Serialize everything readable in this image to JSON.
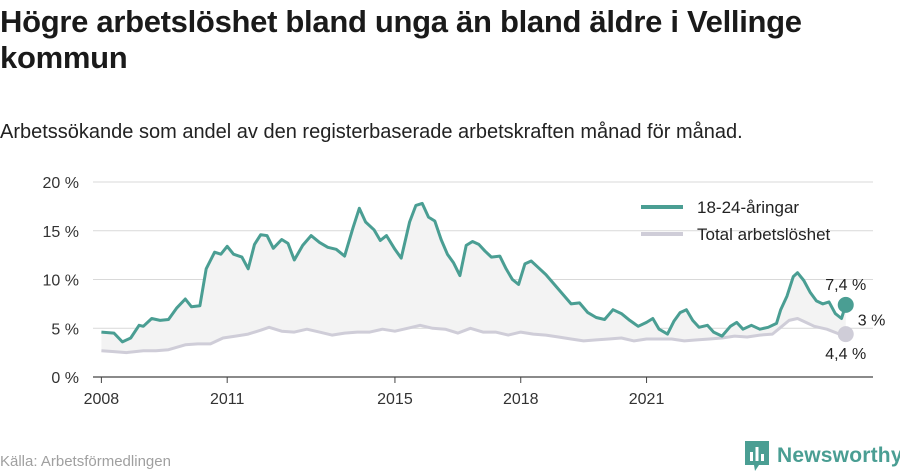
{
  "title": "Högre arbetslöshet bland unga än bland äldre i Vellinge kommun",
  "subtitle": "Arbetssökande som andel av den registerbaserade arbetskraften månad för månad.",
  "source": "Källa: Arbetsförmedlingen",
  "brand": {
    "name": "Newsworthy",
    "icon": "newsworthy-logo-icon"
  },
  "colors": {
    "youth": "#4a9e93",
    "total": "#cfcdd8",
    "fill": "#f3f3f3",
    "grid": "#d9d9d9",
    "accent_text": "#4a9e93"
  },
  "chart_data": {
    "type": "line",
    "ylim": [
      0,
      20
    ],
    "yticks": [
      0,
      5,
      10,
      15,
      20
    ],
    "ytick_labels": [
      "0 %",
      "5 %",
      "10 %",
      "15 %",
      "20 %"
    ],
    "xticks": [
      2008,
      2011,
      2015,
      2018,
      2021
    ],
    "xtick_labels": [
      "2008",
      "2011",
      "2015",
      "2018",
      "2021"
    ],
    "grid": true,
    "legend_position": "top-right",
    "series": [
      {
        "name": "18-24-åringar",
        "color": "#4a9e93",
        "end_label": "7,4 %",
        "points": [
          [
            2008.0,
            4.6
          ],
          [
            2008.3,
            4.5
          ],
          [
            2008.5,
            3.6
          ],
          [
            2008.7,
            4.0
          ],
          [
            2008.9,
            5.3
          ],
          [
            2009.0,
            5.2
          ],
          [
            2009.2,
            6.0
          ],
          [
            2009.4,
            5.8
          ],
          [
            2009.6,
            5.9
          ],
          [
            2009.8,
            7.1
          ],
          [
            2010.0,
            8.0
          ],
          [
            2010.15,
            7.2
          ],
          [
            2010.35,
            7.3
          ],
          [
            2010.5,
            11.1
          ],
          [
            2010.7,
            12.8
          ],
          [
            2010.85,
            12.6
          ],
          [
            2011.0,
            13.4
          ],
          [
            2011.15,
            12.6
          ],
          [
            2011.35,
            12.3
          ],
          [
            2011.5,
            11.1
          ],
          [
            2011.65,
            13.6
          ],
          [
            2011.8,
            14.6
          ],
          [
            2011.95,
            14.5
          ],
          [
            2012.1,
            13.2
          ],
          [
            2012.3,
            14.1
          ],
          [
            2012.45,
            13.7
          ],
          [
            2012.6,
            12.0
          ],
          [
            2012.8,
            13.5
          ],
          [
            2013.0,
            14.5
          ],
          [
            2013.2,
            13.8
          ],
          [
            2013.4,
            13.3
          ],
          [
            2013.6,
            13.1
          ],
          [
            2013.8,
            12.4
          ],
          [
            2014.0,
            15.3
          ],
          [
            2014.15,
            17.3
          ],
          [
            2014.3,
            15.9
          ],
          [
            2014.5,
            15.1
          ],
          [
            2014.65,
            14.0
          ],
          [
            2014.8,
            14.5
          ],
          [
            2015.0,
            13.1
          ],
          [
            2015.15,
            12.2
          ],
          [
            2015.35,
            15.9
          ],
          [
            2015.5,
            17.6
          ],
          [
            2015.65,
            17.8
          ],
          [
            2015.8,
            16.4
          ],
          [
            2015.95,
            16.0
          ],
          [
            2016.1,
            14.1
          ],
          [
            2016.25,
            12.6
          ],
          [
            2016.4,
            11.7
          ],
          [
            2016.55,
            10.4
          ],
          [
            2016.7,
            13.5
          ],
          [
            2016.85,
            13.9
          ],
          [
            2017.0,
            13.6
          ],
          [
            2017.15,
            12.9
          ],
          [
            2017.3,
            12.3
          ],
          [
            2017.5,
            12.4
          ],
          [
            2017.65,
            11.1
          ],
          [
            2017.8,
            10.0
          ],
          [
            2017.95,
            9.5
          ],
          [
            2018.1,
            11.6
          ],
          [
            2018.25,
            11.9
          ],
          [
            2018.4,
            11.3
          ],
          [
            2018.6,
            10.5
          ],
          [
            2018.8,
            9.5
          ],
          [
            2019.0,
            8.5
          ],
          [
            2019.2,
            7.5
          ],
          [
            2019.4,
            7.6
          ],
          [
            2019.6,
            6.6
          ],
          [
            2019.8,
            6.1
          ],
          [
            2020.0,
            5.9
          ],
          [
            2020.2,
            6.9
          ],
          [
            2020.4,
            6.5
          ],
          [
            2020.6,
            5.8
          ],
          [
            2020.8,
            5.2
          ],
          [
            2021.0,
            5.6
          ],
          [
            2021.15,
            6.0
          ],
          [
            2021.3,
            4.9
          ],
          [
            2021.5,
            4.4
          ],
          [
            2021.65,
            5.7
          ],
          [
            2021.8,
            6.6
          ],
          [
            2021.95,
            6.9
          ],
          [
            2022.1,
            5.8
          ],
          [
            2022.25,
            5.1
          ],
          [
            2022.45,
            5.3
          ],
          [
            2022.6,
            4.6
          ],
          [
            2022.8,
            4.2
          ],
          [
            2023.0,
            5.2
          ],
          [
            2023.15,
            5.6
          ],
          [
            2023.3,
            4.9
          ],
          [
            2023.5,
            5.3
          ],
          [
            2023.7,
            4.9
          ],
          [
            2023.9,
            5.1
          ],
          [
            2024.1,
            5.5
          ],
          [
            2024.2,
            6.9
          ],
          [
            2024.35,
            8.3
          ],
          [
            2024.5,
            10.3
          ],
          [
            2024.6,
            10.7
          ],
          [
            2024.75,
            9.9
          ],
          [
            2024.9,
            8.7
          ],
          [
            2025.05,
            7.8
          ],
          [
            2025.2,
            7.5
          ],
          [
            2025.35,
            7.7
          ],
          [
            2025.5,
            6.5
          ],
          [
            2025.65,
            6.0
          ],
          [
            2025.75,
            7.4
          ]
        ]
      },
      {
        "name": "Total arbetslöshet",
        "color": "#cfcdd8",
        "end_label": "4,4 %",
        "points": [
          [
            2008.0,
            2.7
          ],
          [
            2008.3,
            2.6
          ],
          [
            2008.6,
            2.5
          ],
          [
            2009.0,
            2.7
          ],
          [
            2009.3,
            2.7
          ],
          [
            2009.6,
            2.8
          ],
          [
            2010.0,
            3.3
          ],
          [
            2010.3,
            3.4
          ],
          [
            2010.6,
            3.4
          ],
          [
            2010.9,
            4.0
          ],
          [
            2011.2,
            4.2
          ],
          [
            2011.5,
            4.4
          ],
          [
            2011.8,
            4.8
          ],
          [
            2012.0,
            5.1
          ],
          [
            2012.3,
            4.7
          ],
          [
            2012.6,
            4.6
          ],
          [
            2012.9,
            4.9
          ],
          [
            2013.2,
            4.6
          ],
          [
            2013.5,
            4.3
          ],
          [
            2013.8,
            4.5
          ],
          [
            2014.1,
            4.6
          ],
          [
            2014.4,
            4.6
          ],
          [
            2014.7,
            4.9
          ],
          [
            2015.0,
            4.7
          ],
          [
            2015.3,
            5.0
          ],
          [
            2015.6,
            5.3
          ],
          [
            2015.9,
            5.0
          ],
          [
            2016.2,
            4.9
          ],
          [
            2016.5,
            4.5
          ],
          [
            2016.8,
            5.0
          ],
          [
            2017.1,
            4.6
          ],
          [
            2017.4,
            4.6
          ],
          [
            2017.7,
            4.3
          ],
          [
            2018.0,
            4.6
          ],
          [
            2018.3,
            4.4
          ],
          [
            2018.6,
            4.3
          ],
          [
            2018.9,
            4.1
          ],
          [
            2019.2,
            3.9
          ],
          [
            2019.5,
            3.7
          ],
          [
            2019.8,
            3.8
          ],
          [
            2020.1,
            3.9
          ],
          [
            2020.4,
            4.0
          ],
          [
            2020.7,
            3.7
          ],
          [
            2021.0,
            3.9
          ],
          [
            2021.3,
            3.9
          ],
          [
            2021.6,
            3.9
          ],
          [
            2021.9,
            3.7
          ],
          [
            2022.2,
            3.8
          ],
          [
            2022.5,
            3.9
          ],
          [
            2022.8,
            4.0
          ],
          [
            2023.1,
            4.2
          ],
          [
            2023.4,
            4.1
          ],
          [
            2023.7,
            4.3
          ],
          [
            2024.0,
            4.4
          ],
          [
            2024.2,
            5.1
          ],
          [
            2024.4,
            5.8
          ],
          [
            2024.6,
            6.0
          ],
          [
            2024.8,
            5.6
          ],
          [
            2025.0,
            5.2
          ],
          [
            2025.3,
            4.9
          ],
          [
            2025.6,
            4.4
          ],
          [
            2025.75,
            4.4
          ]
        ]
      }
    ],
    "difference_label": "3 %"
  }
}
